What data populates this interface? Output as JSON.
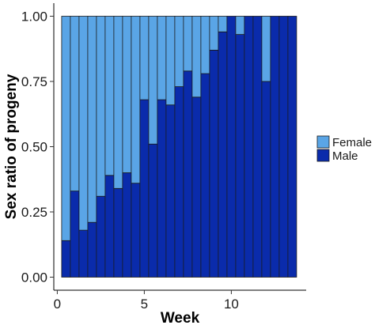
{
  "chart_data": {
    "type": "bar",
    "stacked": true,
    "xlabel": "Week",
    "ylabel": "Sex ratio of progeny",
    "x": [
      0.5,
      1,
      1.5,
      2,
      2.5,
      3,
      3.5,
      4,
      4.5,
      5,
      5.5,
      6,
      6.5,
      7,
      7.5,
      8,
      8.5,
      9,
      9.5,
      10,
      10.5,
      11,
      11.5,
      12,
      12.5,
      13,
      13.5
    ],
    "series": [
      {
        "name": "Male",
        "color": "#0a2bab",
        "values": [
          0.14,
          0.33,
          0.18,
          0.21,
          0.31,
          0.39,
          0.34,
          0.4,
          0.36,
          0.68,
          0.51,
          0.68,
          0.66,
          0.73,
          0.79,
          0.69,
          0.78,
          0.87,
          0.94,
          1.0,
          0.93,
          1.0,
          1.0,
          0.75,
          1.0,
          1.0,
          1.0
        ]
      },
      {
        "name": "Female",
        "color": "#5aa5e6",
        "values": [
          0.86,
          0.67,
          0.82,
          0.79,
          0.69,
          0.61,
          0.66,
          0.6,
          0.64,
          0.32,
          0.49,
          0.32,
          0.34,
          0.27,
          0.21,
          0.31,
          0.22,
          0.13,
          0.06,
          0.0,
          0.07,
          0.0,
          0.0,
          0.25,
          0.0,
          0.0,
          0.0
        ]
      }
    ],
    "xlim": [
      -0.2,
      14.3
    ],
    "ylim": [
      -0.05,
      1.05
    ],
    "xticks": [
      0,
      5,
      10
    ],
    "xtick_labels": [
      "0",
      "5",
      "10"
    ],
    "yticks": [
      0,
      0.25,
      0.5,
      0.75,
      1
    ],
    "ytick_labels": [
      "0.00",
      "0.25",
      "0.50",
      "0.75",
      "1.00"
    ],
    "legend": {
      "position": "right",
      "entries": [
        {
          "label": "Female",
          "color": "#5aa5e6"
        },
        {
          "label": "Male",
          "color": "#0a2bab"
        }
      ]
    },
    "grid": false
  }
}
